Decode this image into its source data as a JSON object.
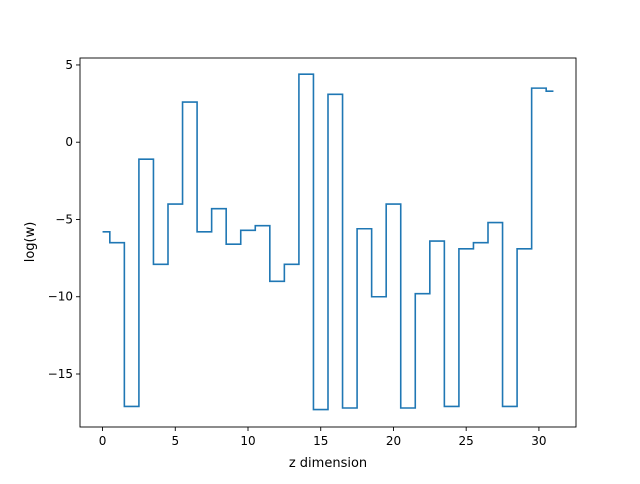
{
  "chart_data": {
    "type": "line",
    "style": "step",
    "xlabel": "z dimension",
    "ylabel": "log(w)",
    "xlim": [
      -1.55,
      32.55
    ],
    "ylim": [
      -18.43,
      5.45
    ],
    "xticks": [
      0,
      5,
      10,
      15,
      20,
      25,
      30
    ],
    "yticks": [
      -15,
      -10,
      -5,
      0,
      5
    ],
    "grid": false,
    "legend": "none",
    "series": [
      {
        "color": "#1f77b4",
        "x": [
          0,
          1,
          2,
          3,
          4,
          5,
          6,
          7,
          8,
          9,
          10,
          11,
          12,
          13,
          14,
          15,
          16,
          17,
          18,
          19,
          20,
          21,
          22,
          23,
          24,
          25,
          26,
          27,
          28,
          29,
          30,
          31
        ],
        "values": [
          -5.8,
          -6.5,
          -17.1,
          -1.1,
          -7.9,
          -4.0,
          2.6,
          -5.8,
          -4.3,
          -6.6,
          -5.7,
          -5.4,
          -9.0,
          -7.9,
          4.4,
          -17.3,
          3.1,
          -17.2,
          -5.6,
          -10.0,
          -4.0,
          -17.2,
          -9.8,
          -6.4,
          -17.1,
          -6.9,
          -6.5,
          -5.2,
          -17.1,
          -6.9,
          3.5,
          3.3
        ]
      }
    ]
  }
}
